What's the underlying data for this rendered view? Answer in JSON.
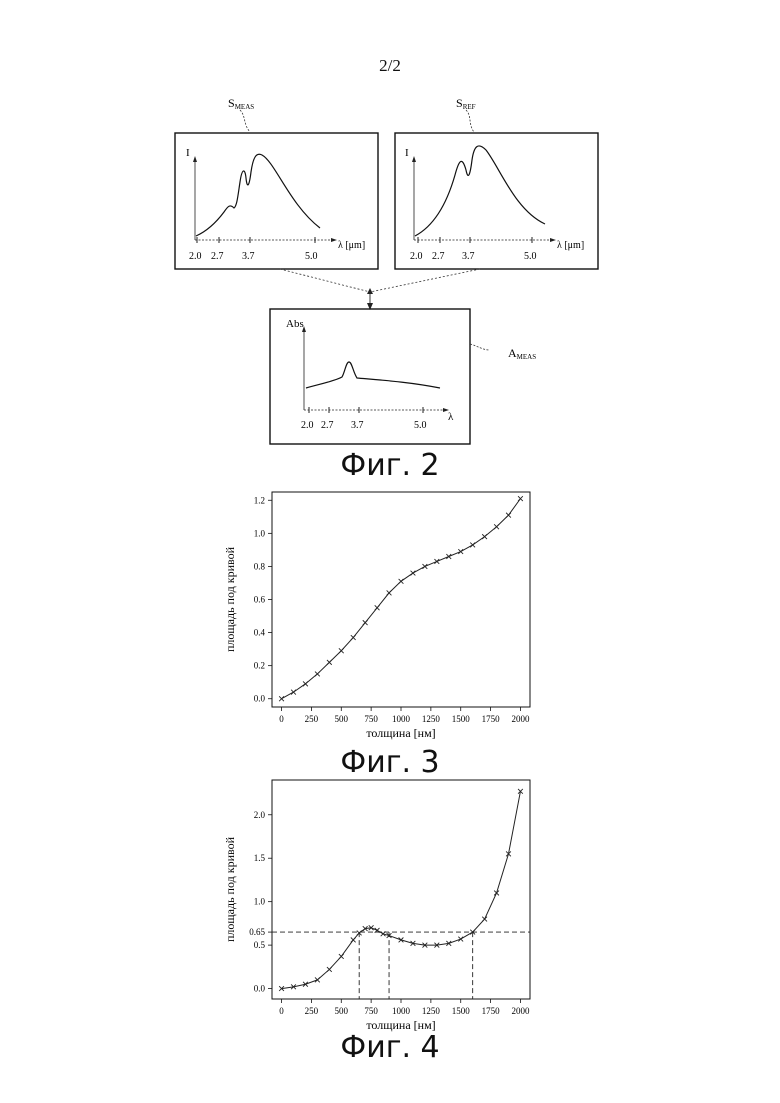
{
  "page_number": "2/2",
  "fig2": {
    "caption": "Фиг. 2",
    "panel_meas": {
      "label_main": "S",
      "label_sub": "MEAS",
      "y_axis": "I",
      "x_axis": "λ [μm]",
      "ticks": [
        "2.0",
        "2.7",
        "3.7",
        "5.0"
      ]
    },
    "panel_ref": {
      "label_main": "S",
      "label_sub": "REF",
      "y_axis": "I",
      "x_axis": "λ [μm]",
      "ticks": [
        "2.0",
        "2.7",
        "3.7",
        "5.0"
      ]
    },
    "panel_abs": {
      "label_main": "A",
      "label_sub": "MEAS",
      "y_axis": "Abs",
      "x_axis": "λ",
      "ticks": [
        "2.0",
        "2.7",
        "3.7",
        "5.0"
      ]
    }
  },
  "chart_data": [
    {
      "type": "line",
      "caption": "Фиг. 3",
      "xlabel": "толщина [нм]",
      "ylabel": "площадь под кривой",
      "xlim": [
        -80,
        2080
      ],
      "ylim": [
        -0.05,
        1.25
      ],
      "xticks": [
        0,
        250,
        500,
        750,
        1000,
        1250,
        1500,
        1750,
        2000
      ],
      "yticks": [
        "0.0",
        "0.2",
        "0.4",
        "0.6",
        "0.8",
        "1.0",
        "1.2"
      ],
      "x": [
        0,
        100,
        200,
        300,
        400,
        500,
        600,
        700,
        800,
        900,
        1000,
        1100,
        1200,
        1300,
        1400,
        1500,
        1600,
        1700,
        1800,
        1900,
        2000
      ],
      "y": [
        0.0,
        0.04,
        0.09,
        0.15,
        0.22,
        0.29,
        0.37,
        0.46,
        0.55,
        0.64,
        0.71,
        0.76,
        0.8,
        0.83,
        0.86,
        0.89,
        0.93,
        0.98,
        1.04,
        1.11,
        1.21
      ],
      "marker": "x"
    },
    {
      "type": "line",
      "caption": "Фиг. 4",
      "xlabel": "толщина [нм]",
      "ylabel": "площадь под кривой",
      "xlim": [
        -80,
        2080
      ],
      "ylim": [
        -0.12,
        2.4
      ],
      "xticks": [
        0,
        250,
        500,
        750,
        1000,
        1250,
        1500,
        1750,
        2000
      ],
      "yticks": [
        "0.0",
        "0.5",
        "0.65",
        "1.0",
        "1.5",
        "2.0"
      ],
      "x": [
        0,
        100,
        200,
        300,
        400,
        500,
        600,
        650,
        700,
        750,
        800,
        850,
        900,
        1000,
        1100,
        1200,
        1300,
        1400,
        1500,
        1600,
        1700,
        1800,
        1900,
        2000
      ],
      "y": [
        0.0,
        0.02,
        0.05,
        0.1,
        0.22,
        0.37,
        0.56,
        0.64,
        0.69,
        0.7,
        0.67,
        0.63,
        0.61,
        0.56,
        0.52,
        0.5,
        0.5,
        0.52,
        0.57,
        0.65,
        0.8,
        1.1,
        1.55,
        2.27
      ],
      "marker": "x",
      "threshold": 0.65,
      "crossings_x": [
        650,
        900,
        1600
      ]
    }
  ]
}
